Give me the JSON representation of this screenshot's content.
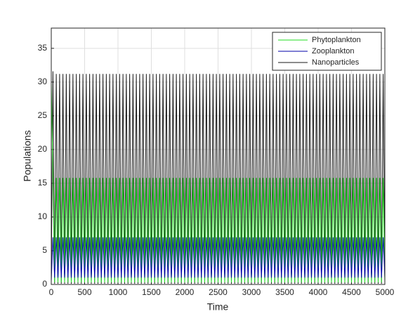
{
  "chart_data": {
    "type": "line",
    "xlabel": "Time",
    "ylabel": "Populations",
    "xlim": [
      0,
      5000
    ],
    "ylim": [
      0,
      38
    ],
    "xticks": [
      0,
      500,
      1000,
      1500,
      2000,
      2500,
      3000,
      3500,
      4000,
      4500,
      5000
    ],
    "yticks": [
      0,
      5,
      10,
      15,
      20,
      25,
      30,
      35
    ],
    "grid": true,
    "legend": "northeast",
    "x": [
      0,
      25,
      50,
      75,
      100,
      125,
      150,
      175,
      200,
      225,
      250,
      275,
      300,
      325,
      350,
      375,
      400,
      425,
      450,
      475,
      500,
      525,
      550,
      575,
      600,
      625,
      650,
      675,
      700,
      725,
      750,
      775,
      800,
      825,
      850,
      875,
      900,
      925,
      950,
      975,
      1000,
      1025,
      1050,
      1075,
      1100,
      1125,
      1150,
      1175,
      1200,
      1225,
      1250,
      1275,
      1300,
      1325,
      1350,
      1375,
      1400,
      1425,
      1450,
      1475,
      1500,
      1525,
      1550,
      1575,
      1600,
      1625,
      1650,
      1675,
      1700,
      1725,
      1750,
      1775,
      1800,
      1825,
      1850,
      1875,
      1900,
      1925,
      1950,
      1975,
      2000,
      2025,
      2050,
      2075,
      2100,
      2125,
      2150,
      2175,
      2200,
      2225,
      2250,
      2275,
      2300,
      2325,
      2350,
      2375,
      2400,
      2425,
      2450,
      2475,
      2500,
      2525,
      2550,
      2575,
      2600,
      2625,
      2650,
      2675,
      2700,
      2725,
      2750,
      2775,
      2800,
      2825,
      2850,
      2875,
      2900,
      2925,
      2950,
      2975,
      3000,
      3025,
      3050,
      3075,
      3100,
      3125,
      3150,
      3175,
      3200,
      3225,
      3250,
      3275,
      3300,
      3325,
      3350,
      3375,
      3400,
      3425,
      3450,
      3475,
      3500,
      3525,
      3550,
      3575,
      3600,
      3625,
      3650,
      3675,
      3700,
      3725,
      3750,
      3775,
      3800,
      3825,
      3850,
      3875,
      3900,
      3925,
      3950,
      3975,
      4000,
      4025,
      4050,
      4075,
      4100,
      4125,
      4150,
      4175,
      4200,
      4225,
      4250,
      4275,
      4300,
      4325,
      4350,
      4375,
      4400,
      4425,
      4450,
      4475,
      4500,
      4525,
      4550,
      4575,
      4600,
      4625,
      4650,
      4675,
      4700,
      4725,
      4750,
      4775,
      4800,
      4825,
      4850,
      4875,
      4900,
      4925,
      4950,
      4975,
      5000
    ],
    "series": [
      {
        "name": "Nanoparticles",
        "color": "#1a1a1a",
        "values": [
          0.5,
          31.6,
          0.1,
          31.2,
          0.1,
          31.2,
          0.1,
          31.2,
          0.1,
          31.2,
          0.1,
          31.2,
          0.1,
          31.2,
          0.1,
          31.2,
          0.1,
          31.2,
          0.1,
          31.2,
          0.1,
          31.2,
          0.1,
          31.2,
          0.1,
          31.2,
          0.1,
          31.2,
          0.1,
          31.2,
          0.1,
          31.2,
          0.1,
          31.2,
          0.1,
          31.2,
          0.1,
          31.2,
          0.1,
          31.2,
          0.1,
          31.2,
          0.1,
          31.2,
          0.1,
          31.2,
          0.1,
          31.2,
          0.1,
          31.2,
          0.1,
          31.2,
          0.1,
          31.2,
          0.1,
          31.2,
          0.1,
          31.2,
          0.1,
          31.2,
          0.1,
          31.2,
          0.1,
          31.2,
          0.1,
          31.2,
          0.1,
          31.2,
          0.1,
          31.2,
          0.1,
          31.2,
          0.1,
          31.2,
          0.1,
          31.2,
          0.1,
          31.2,
          0.1,
          31.2,
          0.1,
          31.2,
          0.1,
          31.2,
          0.1,
          31.2,
          0.1,
          31.2,
          0.1,
          31.2,
          0.1,
          31.2,
          0.1,
          31.2,
          0.1,
          31.2,
          0.1,
          31.2,
          0.1,
          31.2,
          0.1,
          31.2,
          0.1,
          31.2,
          0.1,
          31.2,
          0.1,
          31.2,
          0.1,
          31.2,
          0.1,
          31.2,
          0.1,
          31.2,
          0.1,
          31.2,
          0.1,
          31.2,
          0.1,
          31.2,
          0.1,
          31.2,
          0.1,
          31.2,
          0.1,
          31.2,
          0.1,
          31.2,
          0.1,
          31.2,
          0.1,
          31.2,
          0.1,
          31.2,
          0.1,
          31.2,
          0.1,
          31.2,
          0.1,
          31.2,
          0.1,
          31.2,
          0.1,
          31.2,
          0.1,
          31.2,
          0.1,
          31.2,
          0.1,
          31.2,
          0.1,
          31.2,
          0.1,
          31.2,
          0.1,
          31.2,
          0.1,
          31.2,
          0.1,
          31.2,
          0.1,
          31.2,
          0.1,
          31.2,
          0.1,
          31.2,
          0.1,
          31.2,
          0.1,
          31.2,
          0.1,
          31.2,
          0.1,
          31.2,
          0.1,
          31.2,
          0.1,
          31.2,
          0.1,
          31.2,
          0.1,
          31.2,
          0.1,
          31.2,
          0.1,
          31.2,
          0.1,
          31.2,
          0.1,
          31.2,
          0.1,
          31.2,
          0.1,
          31.2,
          0.1,
          31.2,
          0.1,
          31.2,
          0.1,
          31.2,
          0.1
        ]
      },
      {
        "name": "Phytoplankton",
        "color": "#22dd22",
        "values": [
          30,
          15.8,
          0.3,
          15.8,
          0.3,
          15.8,
          0.3,
          15.8,
          0.3,
          15.8,
          0.3,
          15.8,
          0.3,
          15.8,
          0.3,
          15.8,
          0.3,
          15.8,
          0.3,
          15.8,
          0.3,
          15.8,
          0.3,
          15.8,
          0.3,
          15.8,
          0.3,
          15.8,
          0.3,
          15.8,
          0.3,
          15.8,
          0.3,
          15.8,
          0.3,
          15.8,
          0.3,
          15.8,
          0.3,
          15.8,
          0.3,
          15.8,
          0.3,
          15.8,
          0.3,
          15.8,
          0.3,
          15.8,
          0.3,
          15.8,
          0.3,
          15.8,
          0.3,
          15.8,
          0.3,
          15.8,
          0.3,
          15.8,
          0.3,
          15.8,
          0.3,
          15.8,
          0.3,
          15.8,
          0.3,
          15.8,
          0.3,
          15.8,
          0.3,
          15.8,
          0.3,
          15.8,
          0.3,
          15.8,
          0.3,
          15.8,
          0.3,
          15.8,
          0.3,
          15.8,
          0.3,
          15.8,
          0.3,
          15.8,
          0.3,
          15.8,
          0.3,
          15.8,
          0.3,
          15.8,
          0.3,
          15.8,
          0.3,
          15.8,
          0.3,
          15.8,
          0.3,
          15.8,
          0.3,
          15.8,
          0.3,
          15.8,
          0.3,
          15.8,
          0.3,
          15.8,
          0.3,
          15.8,
          0.3,
          15.8,
          0.3,
          15.8,
          0.3,
          15.8,
          0.3,
          15.8,
          0.3,
          15.8,
          0.3,
          15.8,
          0.3,
          15.8,
          0.3,
          15.8,
          0.3,
          15.8,
          0.3,
          15.8,
          0.3,
          15.8,
          0.3,
          15.8,
          0.3,
          15.8,
          0.3,
          15.8,
          0.3,
          15.8,
          0.3,
          15.8,
          0.3,
          15.8,
          0.3,
          15.8,
          0.3,
          15.8,
          0.3,
          15.8,
          0.3,
          15.8,
          0.3,
          15.8,
          0.3,
          15.8,
          0.3,
          15.8,
          0.3,
          15.8,
          0.3,
          15.8,
          0.3,
          15.8,
          0.3,
          15.8,
          0.3,
          15.8,
          0.3,
          15.8,
          0.3,
          15.8,
          0.3,
          15.8,
          0.3,
          15.8,
          0.3,
          15.8,
          0.3,
          15.8,
          0.3,
          15.8,
          0.3,
          15.8,
          0.3,
          15.8,
          0.3,
          15.8,
          0.3,
          15.8,
          0.3,
          15.8,
          0.3,
          15.8,
          0.3,
          15.8,
          0.3,
          15.8,
          0.3,
          15.8,
          0.3,
          15.8,
          0.3
        ]
      },
      {
        "name": "Zooplankton",
        "color": "#0000a8",
        "values": [
          0.5,
          7,
          1,
          7,
          1,
          7,
          1,
          7,
          1,
          7,
          1,
          7,
          1,
          7,
          1,
          7,
          1,
          7,
          1,
          7,
          1,
          7,
          1,
          7,
          1,
          7,
          1,
          7,
          1,
          7,
          1,
          7,
          1,
          7,
          1,
          7,
          1,
          7,
          1,
          7,
          1,
          7,
          1,
          7,
          1,
          7,
          1,
          7,
          1,
          7,
          1,
          7,
          1,
          7,
          1,
          7,
          1,
          7,
          1,
          7,
          1,
          7,
          1,
          7,
          1,
          7,
          1,
          7,
          1,
          7,
          1,
          7,
          1,
          7,
          1,
          7,
          1,
          7,
          1,
          7,
          1,
          7,
          1,
          7,
          1,
          7,
          1,
          7,
          1,
          7,
          1,
          7,
          1,
          7,
          1,
          7,
          1,
          7,
          1,
          7,
          1,
          7,
          1,
          7,
          1,
          7,
          1,
          7,
          1,
          7,
          1,
          7,
          1,
          7,
          1,
          7,
          1,
          7,
          1,
          7,
          1,
          7,
          1,
          7,
          1,
          7,
          1,
          7,
          1,
          7,
          1,
          7,
          1,
          7,
          1,
          7,
          1,
          7,
          1,
          7,
          1,
          7,
          1,
          7,
          1,
          7,
          1,
          7,
          1,
          7,
          1,
          7,
          1,
          7,
          1,
          7,
          1,
          7,
          1,
          7,
          1,
          7,
          1,
          7,
          1,
          7,
          1,
          7,
          1,
          7,
          1,
          7,
          1,
          7,
          1,
          7,
          1,
          7,
          1,
          7,
          1,
          7,
          1,
          7,
          1,
          7,
          1,
          7,
          1,
          7,
          1,
          7,
          1,
          7,
          1,
          7,
          1,
          7,
          1,
          7,
          1
        ]
      }
    ],
    "legend_order": [
      "Phytoplankton",
      "Zooplankton",
      "Nanoparticles"
    ]
  }
}
